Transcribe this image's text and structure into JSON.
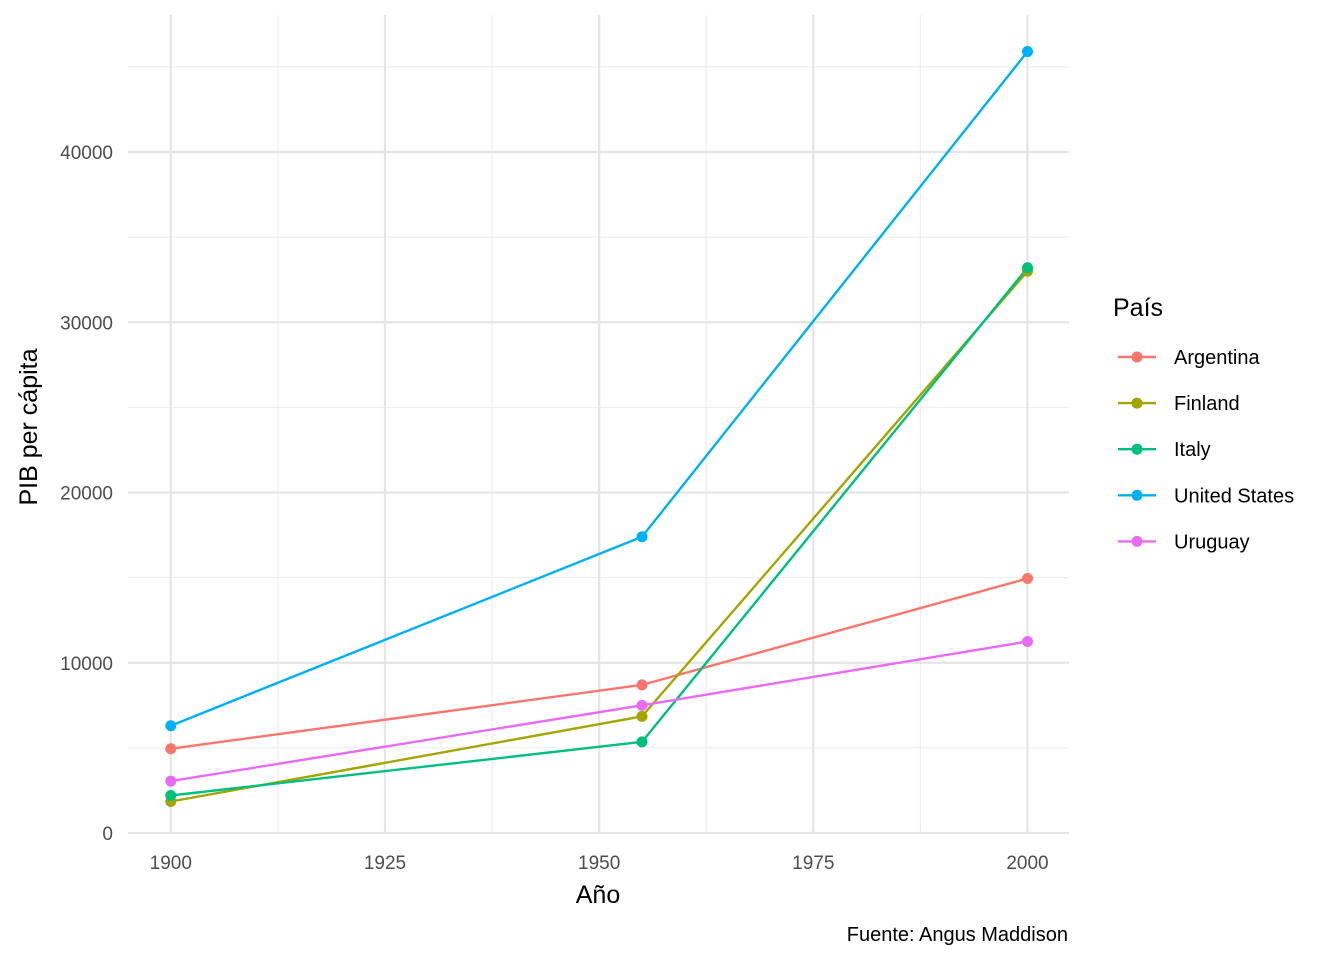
{
  "chart_data": {
    "type": "line",
    "xlabel": "Año",
    "ylabel": "PIB per cápita",
    "caption": "Fuente: Angus Maddison",
    "legend_title": "País",
    "legend_position": "right",
    "grid": true,
    "x": [
      1900,
      1955,
      2000
    ],
    "xlim": [
      1895,
      2005
    ],
    "ylim": [
      0,
      46000
    ],
    "x_ticks": [
      1900,
      1925,
      1950,
      1975,
      2000
    ],
    "x_tick_labels": [
      "1900",
      "1925",
      "1950",
      "1975",
      "2000"
    ],
    "y_ticks": [
      0,
      10000,
      20000,
      30000,
      40000
    ],
    "y_tick_labels": [
      "0",
      "10000",
      "20000",
      "30000",
      "40000"
    ],
    "series": [
      {
        "name": "Argentina",
        "color": "#F8766D",
        "values": [
          4950,
          8700,
          14950
        ]
      },
      {
        "name": "Finland",
        "color": "#A3A500",
        "values": [
          1850,
          6850,
          33000
        ]
      },
      {
        "name": "Italy",
        "color": "#00BF7D",
        "values": [
          2200,
          5350,
          33200
        ]
      },
      {
        "name": "United States",
        "color": "#00B0F6",
        "values": [
          6300,
          17400,
          45900
        ]
      },
      {
        "name": "Uruguay",
        "color": "#E76BF3",
        "values": [
          3050,
          7500,
          11250
        ]
      }
    ]
  }
}
